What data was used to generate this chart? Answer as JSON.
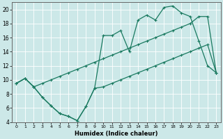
{
  "xlabel": "Humidex (Indice chaleur)",
  "bg_color": "#cce8e8",
  "grid_color": "#ffffff",
  "line_color": "#1a7a60",
  "xlim": [
    -0.5,
    23.5
  ],
  "ylim": [
    4,
    21
  ],
  "xticks": [
    0,
    1,
    2,
    3,
    4,
    5,
    6,
    7,
    8,
    9,
    10,
    11,
    12,
    13,
    14,
    15,
    16,
    17,
    18,
    19,
    20,
    21,
    22,
    23
  ],
  "yticks": [
    4,
    6,
    8,
    10,
    12,
    14,
    16,
    18,
    20
  ],
  "line1_x": [
    0,
    1,
    2,
    3,
    4,
    5,
    6,
    7,
    8,
    9,
    10,
    11,
    12,
    13,
    14,
    15,
    16,
    17,
    18,
    19,
    20,
    21,
    22,
    23
  ],
  "line1_y": [
    9.5,
    10.2,
    9.0,
    7.5,
    6.3,
    5.2,
    4.8,
    4.2,
    6.2,
    8.8,
    9.0,
    9.5,
    10.0,
    10.5,
    11.0,
    11.5,
    12.0,
    12.5,
    13.0,
    13.5,
    14.0,
    14.5,
    15.0,
    11.0
  ],
  "line2_x": [
    0,
    1,
    2,
    3,
    4,
    5,
    6,
    7,
    8,
    9,
    10,
    11,
    12,
    13,
    14,
    15,
    16,
    17,
    18,
    19,
    20,
    21,
    22,
    23
  ],
  "line2_y": [
    9.5,
    10.2,
    9.0,
    7.5,
    6.3,
    5.2,
    4.8,
    4.2,
    6.2,
    8.8,
    16.3,
    16.3,
    17.0,
    14.0,
    18.5,
    19.2,
    18.5,
    20.3,
    20.5,
    19.5,
    19.0,
    15.5,
    12.0,
    11.0
  ],
  "line3_x": [
    0,
    1,
    2,
    3,
    4,
    5,
    6,
    7,
    8,
    9,
    10,
    11,
    12,
    13,
    14,
    15,
    16,
    17,
    18,
    19,
    20,
    21,
    22,
    23
  ],
  "line3_y": [
    9.5,
    10.2,
    9.0,
    9.5,
    10.0,
    10.5,
    11.0,
    11.5,
    12.0,
    12.5,
    13.0,
    13.5,
    14.0,
    14.5,
    15.0,
    15.5,
    16.0,
    16.5,
    17.0,
    17.5,
    18.0,
    19.0,
    19.0,
    11.0
  ]
}
